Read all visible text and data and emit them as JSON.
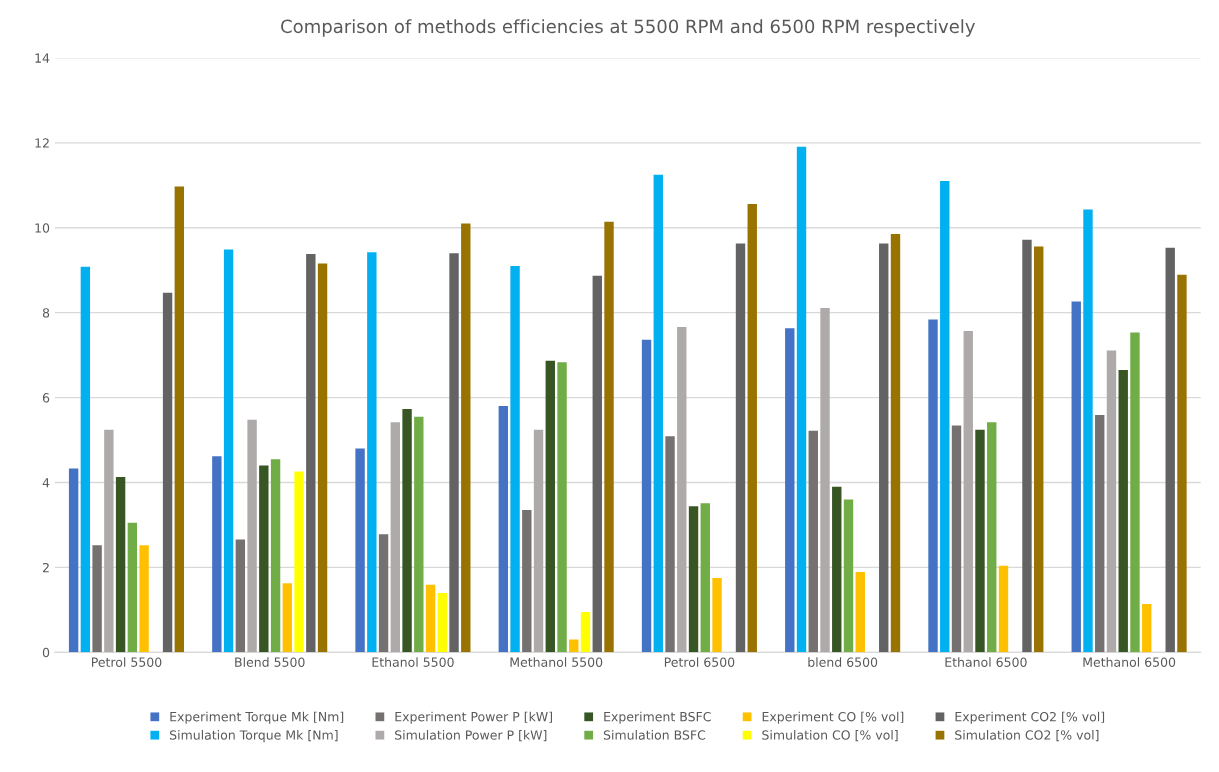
{
  "chart_data": {
    "type": "bar",
    "title": "Comparison of methods efficiencies at 5500 RPM and 6500 RPM respectively",
    "categories": [
      "Petrol 5500",
      "Blend 5500",
      "Ethanol 5500",
      "Methanol 5500",
      "Petrol 6500",
      "blend 6500",
      "Ethanol 6500",
      "Methanol 6500"
    ],
    "series": [
      {
        "name": "Experiment Torque Mk [Nm]",
        "color": "#4472c4",
        "values": [
          4.33,
          4.62,
          4.8,
          5.8,
          7.36,
          7.63,
          7.84,
          8.26
        ]
      },
      {
        "name": "Simulation Torque Mk [Nm]",
        "color": "#00b0f0",
        "values": [
          9.08,
          9.49,
          9.42,
          9.1,
          11.25,
          11.91,
          11.1,
          10.43
        ]
      },
      {
        "name": "Experiment Power P [kW]",
        "color": "#767171",
        "values": [
          2.52,
          2.66,
          2.78,
          3.35,
          5.09,
          5.22,
          5.34,
          5.59
        ]
      },
      {
        "name": "Simulation Power P [kW]",
        "color": "#aeaaaa",
        "values": [
          5.24,
          5.48,
          5.42,
          5.24,
          7.66,
          8.11,
          7.57,
          7.11
        ]
      },
      {
        "name": "Experiment BSFC",
        "color": "#375623",
        "values": [
          4.13,
          4.4,
          5.73,
          6.87,
          3.44,
          3.9,
          5.24,
          6.65
        ]
      },
      {
        "name": "Simulation BSFC",
        "color": "#70ad47",
        "values": [
          3.05,
          4.55,
          5.55,
          6.83,
          3.51,
          3.6,
          5.42,
          7.53
        ]
      },
      {
        "name": "Experiment CO [% vol]",
        "color": "#ffc000",
        "values": [
          2.52,
          1.63,
          1.59,
          0.3,
          1.75,
          1.89,
          2.04,
          1.14
        ]
      },
      {
        "name": "Simulation CO [% vol]",
        "color": "#ffff00",
        "values": [
          null,
          4.26,
          1.4,
          0.95,
          null,
          null,
          null,
          null
        ]
      },
      {
        "name": "Experiment CO2 [% vol]",
        "color": "#636363",
        "values": [
          8.47,
          9.38,
          9.4,
          8.87,
          9.63,
          9.63,
          9.72,
          9.53
        ]
      },
      {
        "name": "Simulation CO2 [% vol]",
        "color": "#997300",
        "values": [
          10.97,
          9.16,
          10.1,
          10.14,
          10.56,
          9.85,
          9.56,
          8.89
        ]
      }
    ],
    "ylim": [
      0,
      14
    ],
    "yticks": [
      0,
      2,
      4,
      6,
      8,
      10,
      12,
      14
    ],
    "grid": "y",
    "legend": "bottom"
  }
}
